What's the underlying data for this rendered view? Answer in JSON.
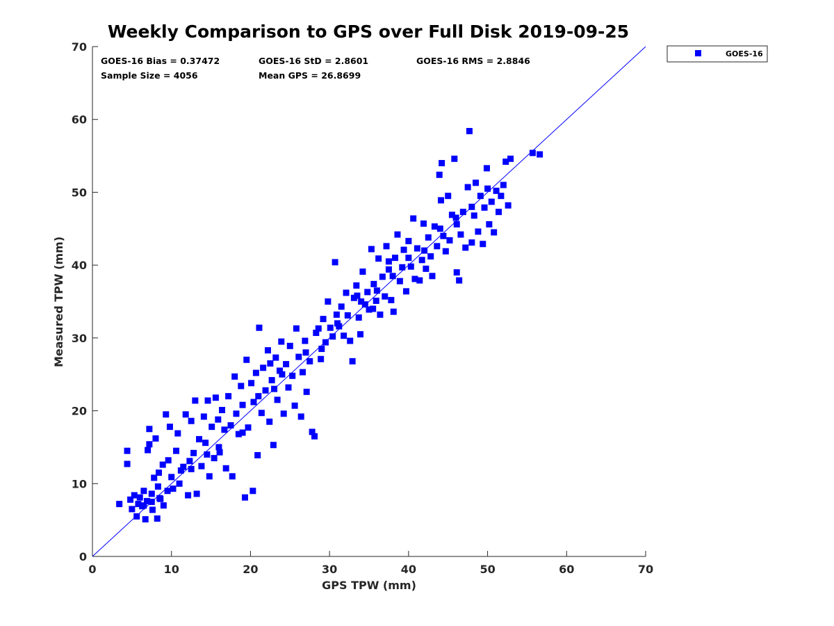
{
  "chart_data": {
    "type": "scatter",
    "title": "Weekly Comparison to GPS over Full Disk 2019-09-25",
    "xlabel": "GPS TPW (mm)",
    "ylabel": "Measured TPW (mm)",
    "xlim": [
      0,
      70
    ],
    "ylim": [
      0,
      70
    ],
    "xticks": [
      "0",
      "10",
      "20",
      "30",
      "40",
      "50",
      "60",
      "70"
    ],
    "yticks": [
      "0",
      "10",
      "20",
      "30",
      "40",
      "50",
      "60",
      "70"
    ],
    "grid": false,
    "legend": {
      "placement": "outside-top-right",
      "entries": [
        "GOES-16"
      ]
    },
    "stats": {
      "bias": "GOES-16 Bias = 0.37472",
      "std": "GOES-16 StD = 2.8601",
      "rms": "GOES-16 RMS = 2.8846",
      "sample_size": "Sample Size = 4056",
      "mean_gps": "Mean GPS = 26.8699"
    },
    "reference_line": {
      "label": "1:1",
      "x": [
        0,
        70
      ],
      "y": [
        0,
        70
      ]
    },
    "series": [
      {
        "name": "GOES-16",
        "color": "#0000ff",
        "marker": "square",
        "points": [
          [
            3.4,
            7.2
          ],
          [
            4.4,
            14.5
          ],
          [
            4.4,
            12.7
          ],
          [
            4.8,
            7.8
          ],
          [
            5.0,
            6.5
          ],
          [
            5.3,
            8.4
          ],
          [
            5.6,
            5.5
          ],
          [
            5.8,
            7.2
          ],
          [
            6.0,
            8.1
          ],
          [
            6.3,
            6.9
          ],
          [
            6.5,
            9.0
          ],
          [
            6.7,
            5.1
          ],
          [
            6.9,
            7.6
          ],
          [
            7.0,
            14.6
          ],
          [
            7.2,
            15.4
          ],
          [
            7.2,
            17.5
          ],
          [
            7.5,
            8.6
          ],
          [
            7.6,
            6.4
          ],
          [
            7.8,
            10.8
          ],
          [
            8.0,
            16.2
          ],
          [
            8.2,
            5.2
          ],
          [
            8.3,
            9.6
          ],
          [
            8.4,
            11.5
          ],
          [
            8.6,
            7.9
          ],
          [
            8.9,
            12.6
          ],
          [
            9.0,
            7.0
          ],
          [
            9.3,
            19.5
          ],
          [
            9.6,
            13.2
          ],
          [
            9.8,
            17.8
          ],
          [
            10.0,
            10.9
          ],
          [
            10.2,
            9.3
          ],
          [
            10.6,
            14.5
          ],
          [
            10.8,
            16.9
          ],
          [
            11.2,
            11.8
          ],
          [
            11.5,
            12.3
          ],
          [
            11.8,
            19.5
          ],
          [
            12.1,
            8.4
          ],
          [
            12.3,
            13.1
          ],
          [
            12.5,
            18.6
          ],
          [
            12.8,
            14.2
          ],
          [
            13.0,
            21.4
          ],
          [
            13.2,
            8.6
          ],
          [
            13.5,
            16.1
          ],
          [
            13.8,
            12.4
          ],
          [
            14.1,
            19.2
          ],
          [
            14.3,
            15.6
          ],
          [
            14.6,
            21.4
          ],
          [
            14.8,
            11.0
          ],
          [
            15.1,
            17.8
          ],
          [
            15.4,
            13.5
          ],
          [
            15.6,
            21.8
          ],
          [
            15.9,
            18.8
          ],
          [
            16.1,
            14.3
          ],
          [
            16.4,
            20.1
          ],
          [
            16.7,
            17.4
          ],
          [
            16.9,
            12.1
          ],
          [
            17.2,
            22.0
          ],
          [
            17.5,
            18.0
          ],
          [
            17.7,
            11.0
          ],
          [
            18.0,
            24.7
          ],
          [
            18.2,
            19.6
          ],
          [
            18.5,
            16.8
          ],
          [
            18.8,
            23.4
          ],
          [
            19.0,
            20.8
          ],
          [
            19.3,
            8.1
          ],
          [
            19.5,
            27.0
          ],
          [
            19.7,
            17.7
          ],
          [
            20.1,
            23.8
          ],
          [
            20.3,
            9.0
          ],
          [
            20.4,
            21.2
          ],
          [
            20.7,
            25.2
          ],
          [
            20.9,
            13.9
          ],
          [
            21.1,
            31.4
          ],
          [
            21.4,
            19.7
          ],
          [
            21.6,
            25.9
          ],
          [
            21.9,
            22.8
          ],
          [
            22.2,
            28.3
          ],
          [
            22.4,
            18.5
          ],
          [
            22.7,
            24.2
          ],
          [
            22.9,
            15.3
          ],
          [
            23.2,
            27.3
          ],
          [
            23.4,
            21.5
          ],
          [
            23.7,
            25.5
          ],
          [
            23.9,
            29.5
          ],
          [
            24.2,
            19.6
          ],
          [
            24.5,
            26.4
          ],
          [
            24.8,
            23.2
          ],
          [
            25.0,
            28.9
          ],
          [
            25.3,
            24.8
          ],
          [
            25.6,
            20.7
          ],
          [
            25.8,
            31.3
          ],
          [
            26.1,
            27.4
          ],
          [
            26.4,
            19.2
          ],
          [
            26.6,
            25.3
          ],
          [
            26.9,
            29.6
          ],
          [
            27.1,
            22.6
          ],
          [
            27.5,
            26.8
          ],
          [
            27.8,
            17.1
          ],
          [
            28.1,
            16.5
          ],
          [
            28.3,
            30.7
          ],
          [
            28.6,
            31.3
          ],
          [
            28.9,
            27.1
          ],
          [
            29.2,
            32.6
          ],
          [
            29.5,
            29.4
          ],
          [
            29.8,
            35.0
          ],
          [
            30.1,
            31.4
          ],
          [
            30.4,
            30.2
          ],
          [
            30.7,
            40.4
          ],
          [
            30.9,
            33.2
          ],
          [
            31.2,
            31.6
          ],
          [
            31.5,
            34.3
          ],
          [
            31.8,
            30.3
          ],
          [
            32.1,
            36.2
          ],
          [
            32.3,
            33.1
          ],
          [
            32.6,
            29.6
          ],
          [
            32.9,
            26.8
          ],
          [
            33.1,
            35.5
          ],
          [
            33.4,
            37.2
          ],
          [
            33.7,
            32.8
          ],
          [
            33.9,
            30.5
          ],
          [
            34.2,
            39.1
          ],
          [
            34.5,
            34.6
          ],
          [
            34.8,
            36.3
          ],
          [
            35.0,
            33.9
          ],
          [
            35.3,
            42.2
          ],
          [
            35.6,
            37.4
          ],
          [
            35.9,
            35.1
          ],
          [
            36.2,
            40.9
          ],
          [
            36.4,
            33.2
          ],
          [
            36.7,
            38.4
          ],
          [
            37.0,
            35.7
          ],
          [
            37.2,
            42.6
          ],
          [
            37.5,
            39.4
          ],
          [
            37.8,
            35.2
          ],
          [
            38.1,
            33.6
          ],
          [
            38.3,
            41.0
          ],
          [
            38.6,
            44.2
          ],
          [
            38.9,
            37.8
          ],
          [
            39.2,
            39.7
          ],
          [
            39.4,
            42.1
          ],
          [
            39.7,
            36.4
          ],
          [
            40.0,
            43.3
          ],
          [
            40.3,
            39.8
          ],
          [
            40.6,
            46.4
          ],
          [
            40.8,
            38.1
          ],
          [
            41.1,
            42.3
          ],
          [
            41.4,
            37.9
          ],
          [
            41.7,
            40.7
          ],
          [
            41.9,
            45.7
          ],
          [
            42.2,
            39.5
          ],
          [
            42.5,
            43.8
          ],
          [
            42.8,
            41.2
          ],
          [
            43.0,
            38.5
          ],
          [
            43.3,
            45.3
          ],
          [
            43.6,
            42.6
          ],
          [
            43.9,
            52.4
          ],
          [
            44.1,
            48.9
          ],
          [
            44.4,
            44.0
          ],
          [
            44.7,
            41.9
          ],
          [
            45.0,
            49.5
          ],
          [
            45.2,
            43.4
          ],
          [
            45.5,
            46.9
          ],
          [
            45.8,
            54.6
          ],
          [
            46.1,
            45.6
          ],
          [
            46.4,
            37.9
          ],
          [
            46.6,
            44.2
          ],
          [
            46.9,
            47.3
          ],
          [
            47.2,
            42.4
          ],
          [
            47.5,
            50.7
          ],
          [
            47.7,
            58.4
          ],
          [
            48.0,
            43.1
          ],
          [
            48.3,
            46.8
          ],
          [
            48.5,
            51.3
          ],
          [
            48.8,
            44.6
          ],
          [
            49.1,
            49.5
          ],
          [
            49.4,
            42.9
          ],
          [
            49.6,
            47.9
          ],
          [
            49.9,
            53.3
          ],
          [
            50.2,
            45.6
          ],
          [
            50.5,
            48.7
          ],
          [
            50.8,
            44.5
          ],
          [
            51.1,
            50.2
          ],
          [
            51.4,
            47.3
          ],
          [
            51.7,
            49.5
          ],
          [
            52.0,
            51.0
          ],
          [
            52.3,
            54.2
          ],
          [
            52.6,
            48.2
          ],
          [
            52.9,
            54.6
          ],
          [
            55.7,
            55.4
          ],
          [
            56.6,
            55.2
          ],
          [
            44.2,
            54.0
          ],
          [
            46.1,
            39.0
          ],
          [
            23.0,
            23.0
          ],
          [
            24.0,
            25.0
          ],
          [
            22.5,
            26.5
          ],
          [
            21.0,
            22.0
          ],
          [
            19.0,
            17.0
          ],
          [
            16.0,
            15.0
          ],
          [
            14.5,
            14.0
          ],
          [
            12.5,
            12.0
          ],
          [
            11.0,
            10.0
          ],
          [
            9.5,
            9.0
          ],
          [
            8.5,
            8.0
          ],
          [
            7.5,
            7.5
          ],
          [
            6.5,
            7.0
          ],
          [
            27.0,
            28.0
          ],
          [
            29.0,
            28.5
          ],
          [
            31.0,
            32.0
          ],
          [
            34.0,
            35.0
          ],
          [
            36.0,
            36.5
          ],
          [
            38.0,
            38.5
          ],
          [
            40.0,
            41.0
          ],
          [
            42.0,
            42.0
          ],
          [
            44.0,
            45.0
          ],
          [
            46.0,
            46.5
          ],
          [
            48.0,
            48.0
          ],
          [
            50.0,
            50.5
          ],
          [
            37.5,
            40.5
          ],
          [
            35.5,
            34.0
          ],
          [
            33.5,
            35.8
          ]
        ]
      }
    ]
  }
}
